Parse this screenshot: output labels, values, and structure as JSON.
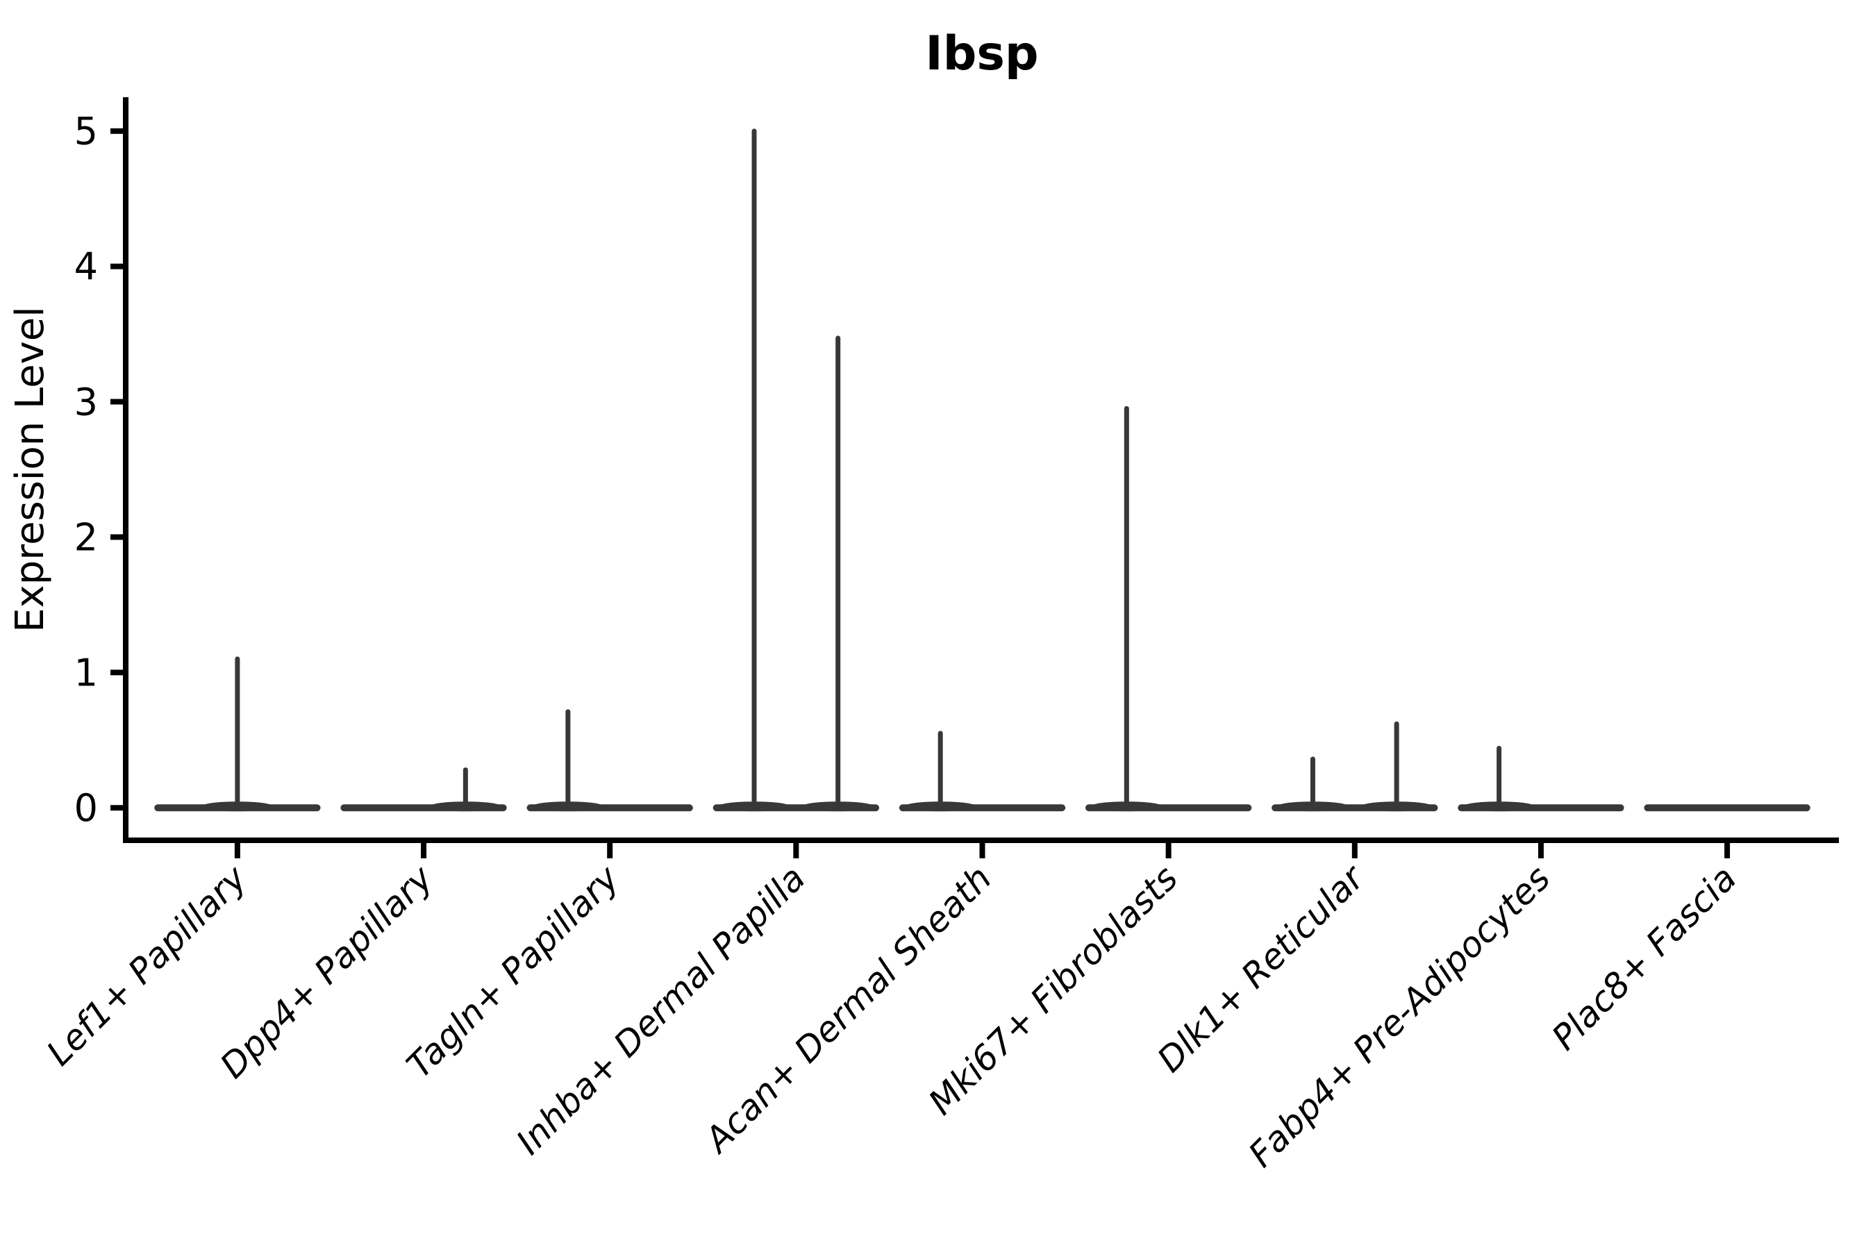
{
  "chart_data": {
    "type": "violin",
    "title": "Ibsp",
    "xlabel": "",
    "ylabel": "Expression Level",
    "yticks": [
      0,
      1,
      2,
      3,
      4,
      5
    ],
    "ylim": [
      -0.24,
      5.25
    ],
    "grid": false,
    "legend": "none",
    "violin_full_halfwidth_units": 0.45,
    "sub_violin_halfwidth_units": 0.225,
    "note": "Flat violins at 0 expression with thin density spikes; spike value = max expression per sub-violin",
    "categories": [
      {
        "label": "Lef1+ Papillary",
        "spikes": [
          {
            "offset": 0,
            "value": 1.1
          }
        ]
      },
      {
        "label": "Dpp4+ Papillary",
        "spikes": [
          {
            "offset": 0.225,
            "value": 0.28
          }
        ]
      },
      {
        "label": "Tagln+ Papillary",
        "spikes": [
          {
            "offset": -0.225,
            "value": 0.71
          }
        ]
      },
      {
        "label": "Inhba+ Dermal Papilla",
        "spikes": [
          {
            "offset": -0.225,
            "value": 5.0
          },
          {
            "offset": 0.225,
            "value": 3.47
          }
        ]
      },
      {
        "label": "Acan+ Dermal Sheath",
        "spikes": [
          {
            "offset": -0.225,
            "value": 0.55
          }
        ]
      },
      {
        "label": "Mki67+ Fibroblasts",
        "spikes": [
          {
            "offset": -0.225,
            "value": 2.95
          }
        ]
      },
      {
        "label": "Dlk1+ Reticular",
        "spikes": [
          {
            "offset": -0.225,
            "value": 0.36
          },
          {
            "offset": 0.225,
            "value": 0.62
          }
        ]
      },
      {
        "label": "Fabp4+ Pre-Adipocytes",
        "spikes": [
          {
            "offset": -0.225,
            "value": 0.44
          }
        ]
      },
      {
        "label": "Plac8+ Fascia",
        "spikes": []
      }
    ],
    "colors": {
      "ink": "#000000",
      "violin": "#383838"
    }
  }
}
